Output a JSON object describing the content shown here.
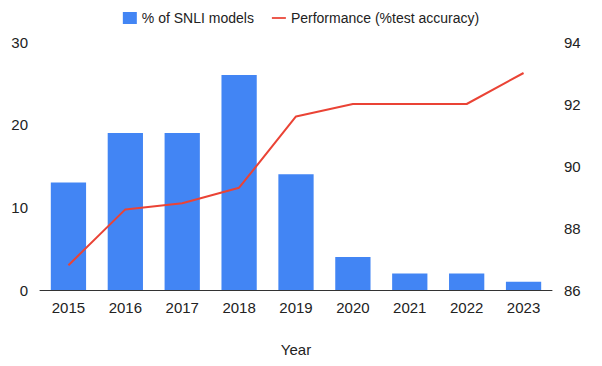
{
  "chart_data": {
    "type": "bar",
    "categories": [
      "2015",
      "2016",
      "2017",
      "2018",
      "2019",
      "2020",
      "2021",
      "2022",
      "2023"
    ],
    "series": [
      {
        "name": "% of SNLI models",
        "type": "bar",
        "color": "#4285f4",
        "values": [
          13,
          19,
          19,
          26,
          14,
          4,
          2,
          2,
          1
        ]
      },
      {
        "name": "Performance (%test accuracy)",
        "type": "line",
        "axis": "y2",
        "color": "#ea4335",
        "values": [
          86.8,
          88.6,
          88.8,
          89.3,
          91.6,
          92.0,
          92.0,
          92.0,
          93.0
        ]
      }
    ],
    "xlabel": "Year",
    "ylim": [
      0,
      30
    ],
    "yticks": [
      0,
      10,
      20,
      30
    ],
    "y2lim": [
      86,
      94
    ],
    "y2ticks": [
      86,
      88,
      90,
      92,
      94
    ],
    "legend": "top",
    "grid": false
  }
}
